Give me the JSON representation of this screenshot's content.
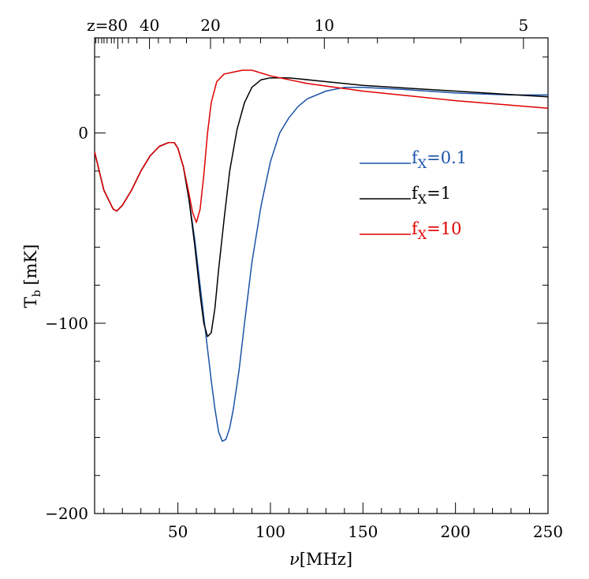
{
  "chart_data": {
    "type": "line",
    "xlabel_symbol": "ν",
    "xlabel_unit": "[MHz]",
    "ylabel_symbol": "T",
    "ylabel_sub": "b",
    "ylabel_unit": "[mK]",
    "xlim": [
      5,
      250
    ],
    "ylim": [
      -200,
      50
    ],
    "x_ticks": [
      50,
      100,
      150,
      200,
      250
    ],
    "x_minor_step": 10,
    "y_ticks": [
      0,
      -100,
      -200
    ],
    "y_minor_step": 20,
    "top_axis": {
      "label_prefix": "z=",
      "ticks": [
        {
          "z": 80,
          "label": "80"
        },
        {
          "z": 40,
          "label": "40"
        },
        {
          "z": 20,
          "label": "20"
        },
        {
          "z": 10,
          "label": "10"
        },
        {
          "z": 5,
          "label": "5"
        }
      ]
    },
    "legend_position": "right",
    "series": [
      {
        "name_base": "f",
        "name_sub": "X",
        "name_value": "=0.1",
        "color": "#1a53a6",
        "points": [
          [
            5,
            -10
          ],
          [
            10,
            -30
          ],
          [
            15,
            -40
          ],
          [
            17,
            -41
          ],
          [
            20,
            -38
          ],
          [
            25,
            -30
          ],
          [
            30,
            -20
          ],
          [
            35,
            -12
          ],
          [
            40,
            -7
          ],
          [
            45,
            -5
          ],
          [
            48,
            -5
          ],
          [
            50,
            -8
          ],
          [
            53,
            -18
          ],
          [
            56,
            -35
          ],
          [
            59,
            -55
          ],
          [
            62,
            -80
          ],
          [
            65,
            -105
          ],
          [
            68,
            -130
          ],
          [
            70,
            -145
          ],
          [
            72,
            -157
          ],
          [
            74,
            -162
          ],
          [
            76,
            -161
          ],
          [
            78,
            -155
          ],
          [
            80,
            -145
          ],
          [
            83,
            -125
          ],
          [
            86,
            -100
          ],
          [
            90,
            -68
          ],
          [
            95,
            -38
          ],
          [
            100,
            -15
          ],
          [
            105,
            0
          ],
          [
            110,
            8
          ],
          [
            115,
            14
          ],
          [
            120,
            18
          ],
          [
            130,
            22
          ],
          [
            140,
            24
          ],
          [
            150,
            24
          ],
          [
            170,
            23
          ],
          [
            200,
            21
          ],
          [
            230,
            20
          ],
          [
            250,
            20
          ]
        ]
      },
      {
        "name_base": "f",
        "name_sub": "X",
        "name_value": "=1",
        "color": "#000000",
        "points": [
          [
            5,
            -10
          ],
          [
            10,
            -30
          ],
          [
            15,
            -40
          ],
          [
            17,
            -41
          ],
          [
            20,
            -38
          ],
          [
            25,
            -30
          ],
          [
            30,
            -20
          ],
          [
            35,
            -12
          ],
          [
            40,
            -7
          ],
          [
            45,
            -5
          ],
          [
            48,
            -5
          ],
          [
            50,
            -8
          ],
          [
            53,
            -18
          ],
          [
            56,
            -35
          ],
          [
            59,
            -58
          ],
          [
            62,
            -85
          ],
          [
            64,
            -100
          ],
          [
            66,
            -107
          ],
          [
            68,
            -105
          ],
          [
            70,
            -92
          ],
          [
            72,
            -72
          ],
          [
            75,
            -45
          ],
          [
            78,
            -20
          ],
          [
            82,
            2
          ],
          [
            86,
            16
          ],
          [
            90,
            24
          ],
          [
            95,
            28
          ],
          [
            100,
            29
          ],
          [
            110,
            29
          ],
          [
            130,
            27
          ],
          [
            150,
            25
          ],
          [
            200,
            22
          ],
          [
            250,
            19
          ]
        ]
      },
      {
        "name_base": "f",
        "name_sub": "X",
        "name_value": "=10",
        "color": "#e00000",
        "points": [
          [
            5,
            -10
          ],
          [
            10,
            -30
          ],
          [
            15,
            -40
          ],
          [
            17,
            -41
          ],
          [
            20,
            -38
          ],
          [
            25,
            -30
          ],
          [
            30,
            -20
          ],
          [
            35,
            -12
          ],
          [
            40,
            -7
          ],
          [
            45,
            -5
          ],
          [
            48,
            -5
          ],
          [
            50,
            -8
          ],
          [
            53,
            -18
          ],
          [
            56,
            -32
          ],
          [
            58,
            -42
          ],
          [
            60,
            -47
          ],
          [
            62,
            -40
          ],
          [
            64,
            -22
          ],
          [
            66,
            0
          ],
          [
            68,
            16
          ],
          [
            71,
            27
          ],
          [
            75,
            31
          ],
          [
            80,
            32
          ],
          [
            85,
            33
          ],
          [
            90,
            33
          ],
          [
            100,
            30
          ],
          [
            120,
            26
          ],
          [
            150,
            22
          ],
          [
            200,
            17
          ],
          [
            250,
            13
          ]
        ]
      }
    ]
  }
}
